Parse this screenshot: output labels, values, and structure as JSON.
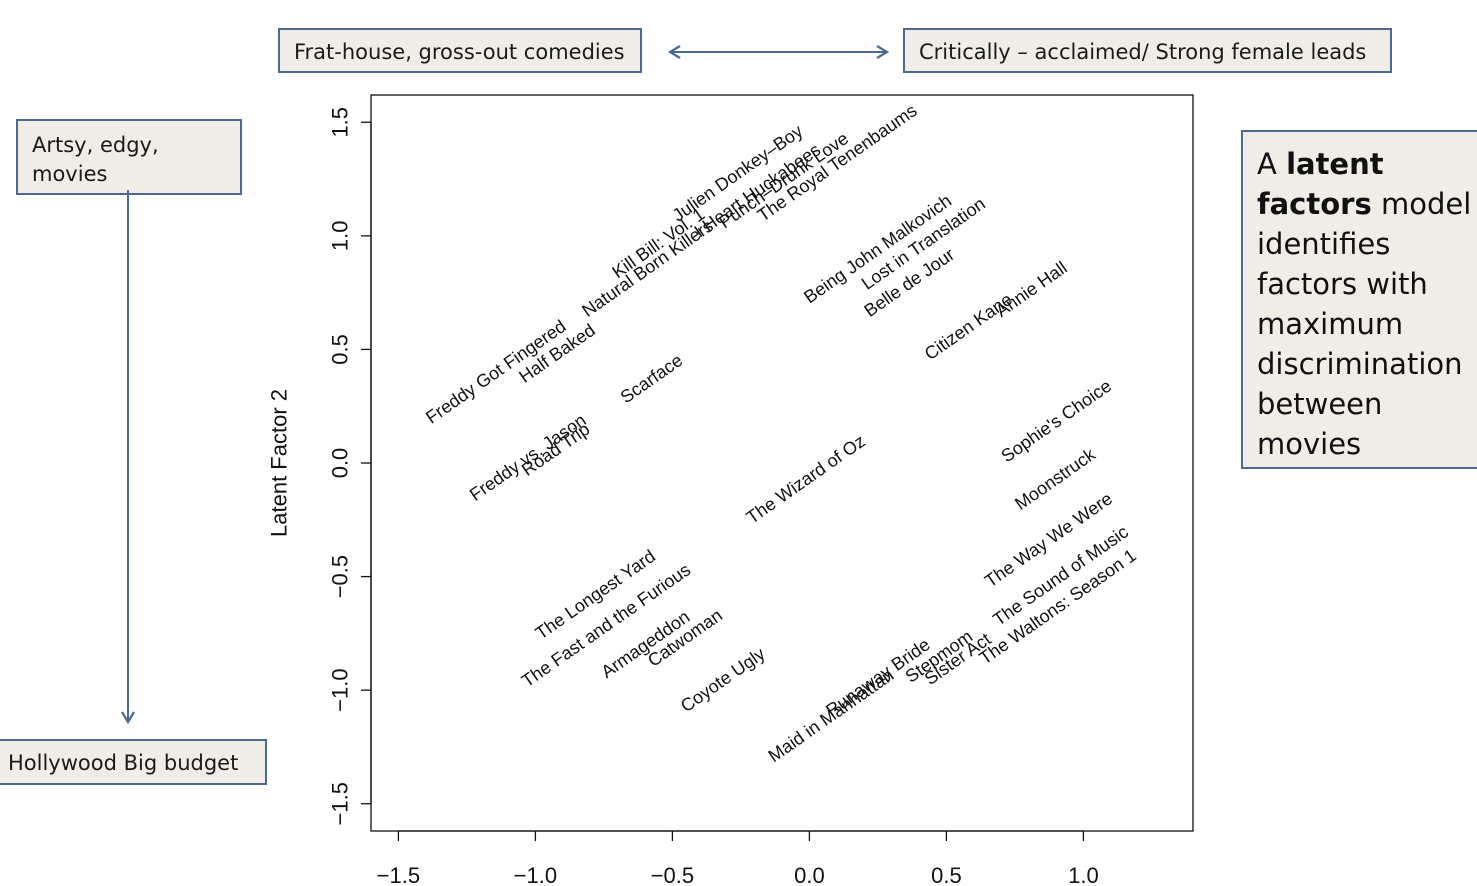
{
  "annotations": {
    "frat": "Frat-house, gross-out comedies",
    "critic": "Critically – acclaimed/ Strong female leads",
    "artsy": [
      "Artsy, edgy,",
      "movies"
    ],
    "hollywood": "Hollywood Big budget"
  },
  "info": {
    "pre": "A ",
    "bold": "latent factors",
    "post": " model identifies factors with maximum discrimination between movies"
  },
  "colors": {
    "arrow": "#4a6a92",
    "box_fill": "#efede6",
    "box_border": "#4a6a92"
  },
  "chart_data": {
    "type": "scatter",
    "ylabel": "Latent Factor 2",
    "xlim": [
      -1.6,
      1.4
    ],
    "ylim": [
      -1.62,
      1.62
    ],
    "x_ticks": [
      -1.5,
      -1.0,
      -0.5,
      0.0,
      0.5,
      1.0
    ],
    "x_tick_labels": [
      "−1.5",
      "−1.0",
      "−0.5",
      "0.0",
      "0.5",
      "1.0"
    ],
    "y_ticks": [
      -1.5,
      -1.0,
      -0.5,
      0.0,
      0.5,
      1.0,
      1.5
    ],
    "y_tick_labels": [
      "−1.5",
      "−1.0",
      "−0.5",
      "0.0",
      "0.5",
      "1.0",
      "1.5"
    ],
    "label_rotation_deg": 35,
    "points": [
      {
        "label": "Julien Donkey–Boy",
        "x": -0.48,
        "y": 1.06
      },
      {
        "label": "I Heart Huckabees",
        "x": -0.4,
        "y": 0.99
      },
      {
        "label": "Punch–Drunk Love",
        "x": -0.31,
        "y": 1.03
      },
      {
        "label": "The Royal Tenenbaums",
        "x": -0.17,
        "y": 1.06
      },
      {
        "label": "Kill Bill: Vol. 1",
        "x": -0.7,
        "y": 0.81
      },
      {
        "label": "Natural Born Killers",
        "x": -0.81,
        "y": 0.64
      },
      {
        "label": "Being John Malkovich",
        "x": 0.0,
        "y": 0.7
      },
      {
        "label": "Lost in Translation",
        "x": 0.21,
        "y": 0.76
      },
      {
        "label": "Belle de Jour",
        "x": 0.22,
        "y": 0.64
      },
      {
        "label": "Citizen Kane",
        "x": 0.44,
        "y": 0.45
      },
      {
        "label": "Annie Hall",
        "x": 0.7,
        "y": 0.64
      },
      {
        "label": "Freddy Got Fingered",
        "x": -1.38,
        "y": 0.17
      },
      {
        "label": "Half Baked",
        "x": -1.04,
        "y": 0.35
      },
      {
        "label": "Freddy vs. Jason",
        "x": -1.22,
        "y": -0.17
      },
      {
        "label": "Road Trip",
        "x": -1.03,
        "y": -0.06
      },
      {
        "label": "Scarface",
        "x": -0.67,
        "y": 0.26
      },
      {
        "label": "The Wizard of Oz",
        "x": -0.21,
        "y": -0.27
      },
      {
        "label": "Sophie's Choice",
        "x": 0.72,
        "y": 0.0
      },
      {
        "label": "Moonstruck",
        "x": 0.77,
        "y": -0.21
      },
      {
        "label": "The Way We Were",
        "x": 0.66,
        "y": -0.55
      },
      {
        "label": "The Longest Yard",
        "x": -0.98,
        "y": -0.78
      },
      {
        "label": "The Fast and the Furious",
        "x": -1.03,
        "y": -0.99
      },
      {
        "label": "Armageddon",
        "x": -0.74,
        "y": -0.95
      },
      {
        "label": "Catwoman",
        "x": -0.57,
        "y": -0.9
      },
      {
        "label": "Coyote Ugly",
        "x": -0.45,
        "y": -1.1
      },
      {
        "label": "The Sound of Music",
        "x": 0.69,
        "y": -0.72
      },
      {
        "label": "The Waltons: Season 1",
        "x": 0.64,
        "y": -0.89
      },
      {
        "label": "Sister Act",
        "x": 0.44,
        "y": -0.98
      },
      {
        "label": "Stepmom",
        "x": 0.37,
        "y": -0.97
      },
      {
        "label": "Runaway Bride",
        "x": 0.08,
        "y": -1.12
      },
      {
        "label": "Maid in Manhattan",
        "x": -0.13,
        "y": -1.32
      }
    ]
  }
}
